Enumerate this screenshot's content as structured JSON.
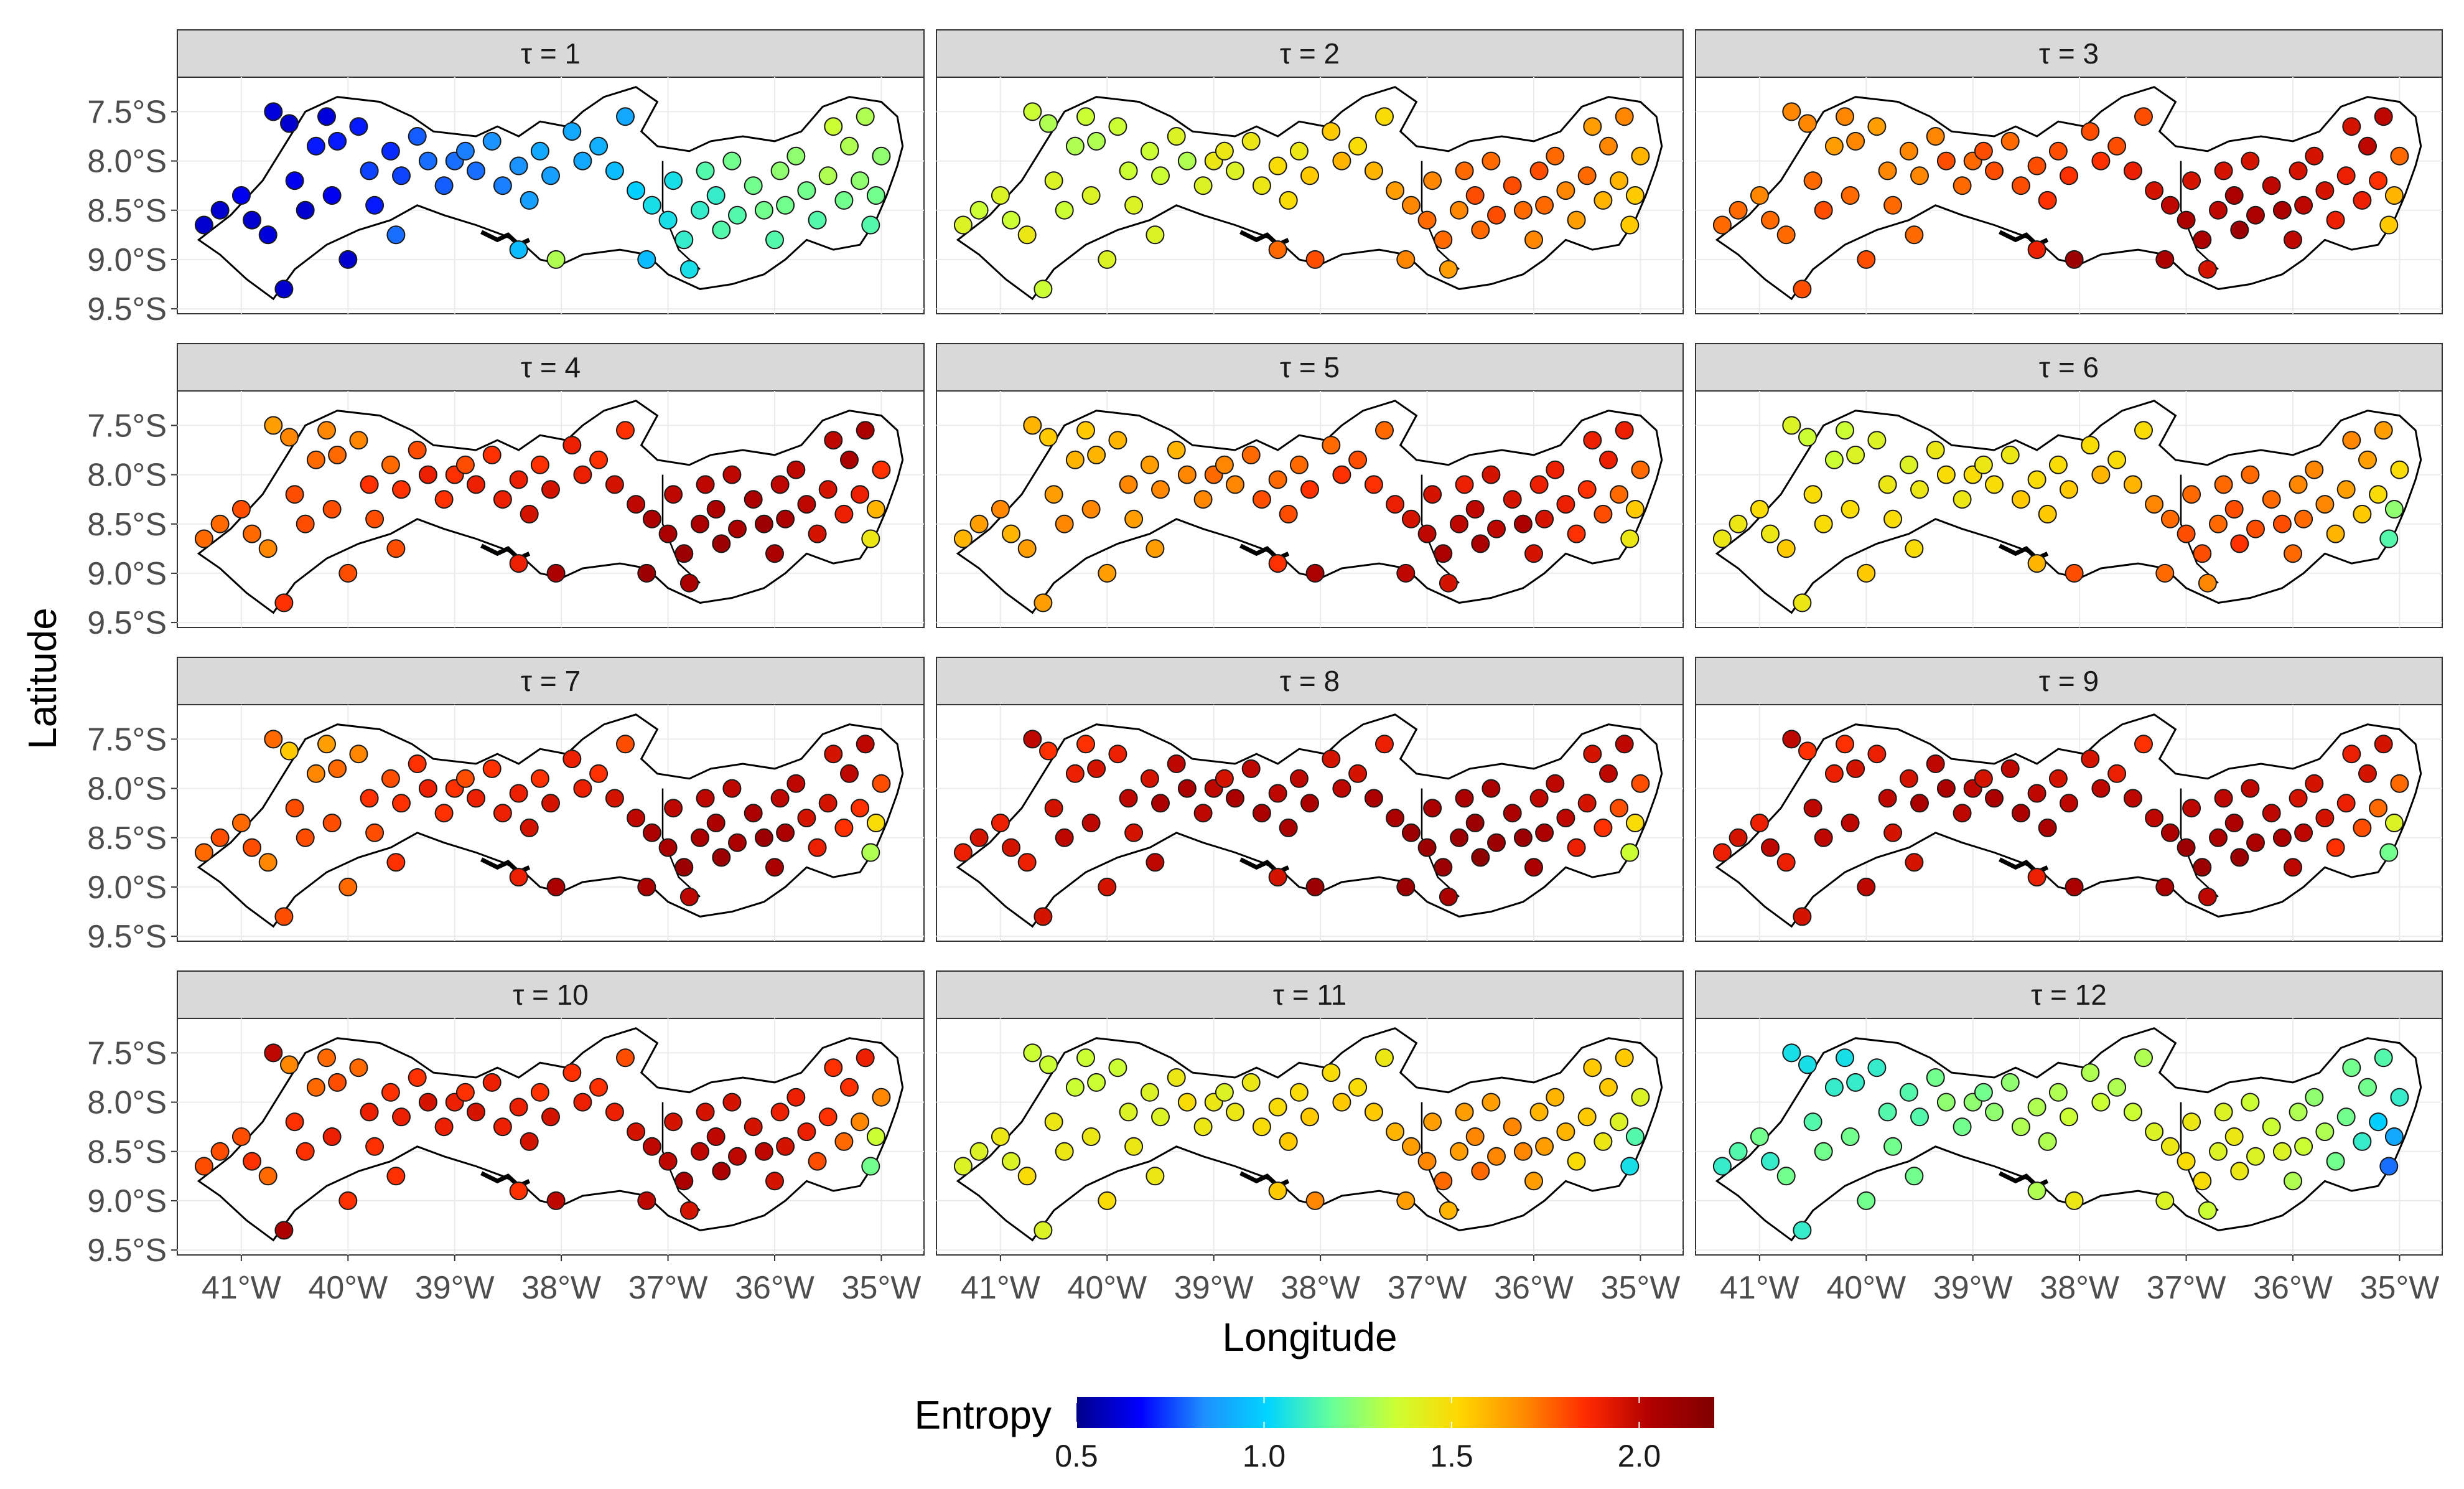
{
  "chart_data": {
    "type": "map",
    "region": "Pernambuco",
    "x_label": "Longitude",
    "y_label": "Latitude",
    "x_ticks": [
      "41°W",
      "40°W",
      "39°W",
      "38°W",
      "37°W",
      "36°W",
      "35°W"
    ],
    "y_ticks": [
      "7.5°S",
      "8.0°S",
      "8.5°S",
      "9.0°S",
      "9.5°S"
    ],
    "x_tick_values": [
      -41,
      -40,
      -39,
      -38,
      -37,
      -36,
      -35
    ],
    "y_tick_values": [
      -7.5,
      -8.0,
      -8.5,
      -9.0,
      -9.5
    ],
    "xlim": [
      -41.6,
      -34.6
    ],
    "ylim": [
      -9.55,
      -7.15
    ],
    "legend": {
      "title": "Entropy",
      "position": "bottom",
      "range": [
        0.5,
        2.2
      ],
      "ticks": [
        "0.5",
        "1.0",
        "1.5",
        "2.0"
      ],
      "tick_values": [
        0.5,
        1.0,
        1.5,
        2.0
      ],
      "colors": [
        "#00008b",
        "#0000ff",
        "#1e90ff",
        "#00d5ff",
        "#66ff99",
        "#ccff33",
        "#ffd700",
        "#ff8c00",
        "#ff2a00",
        "#b00000",
        "#800000"
      ]
    },
    "panel_labels": [
      "τ = 1",
      "τ = 2",
      "τ = 3",
      "τ = 4",
      "τ = 5",
      "τ = 6",
      "τ = 7",
      "τ = 8",
      "τ = 9",
      "τ = 10",
      "τ = 11",
      "τ = 12"
    ],
    "stations": [
      [
        -41.2,
        -8.5
      ],
      [
        -41.0,
        -8.35
      ],
      [
        -40.9,
        -8.6
      ],
      [
        -40.75,
        -8.75
      ],
      [
        -40.7,
        -7.5
      ],
      [
        -40.55,
        -7.62
      ],
      [
        -40.5,
        -8.2
      ],
      [
        -40.4,
        -8.5
      ],
      [
        -40.3,
        -7.85
      ],
      [
        -40.2,
        -7.55
      ],
      [
        -40.1,
        -7.8
      ],
      [
        -40.15,
        -8.35
      ],
      [
        -40.0,
        -9.0
      ],
      [
        -39.9,
        -7.65
      ],
      [
        -39.8,
        -8.1
      ],
      [
        -39.75,
        -8.45
      ],
      [
        -39.6,
        -7.9
      ],
      [
        -39.5,
        -8.15
      ],
      [
        -39.35,
        -7.75
      ],
      [
        -39.25,
        -8.0
      ],
      [
        -39.1,
        -8.25
      ],
      [
        -39.0,
        -8.0
      ],
      [
        -38.9,
        -7.9
      ],
      [
        -38.8,
        -8.1
      ],
      [
        -38.65,
        -7.8
      ],
      [
        -38.55,
        -8.25
      ],
      [
        -38.4,
        -8.05
      ],
      [
        -38.3,
        -8.4
      ],
      [
        -38.2,
        -7.9
      ],
      [
        -38.1,
        -8.15
      ],
      [
        -37.9,
        -7.7
      ],
      [
        -37.8,
        -8.0
      ],
      [
        -37.65,
        -7.85
      ],
      [
        -37.5,
        -8.1
      ],
      [
        -37.4,
        -7.55
      ],
      [
        -37.3,
        -8.3
      ],
      [
        -37.15,
        -8.45
      ],
      [
        -37.0,
        -8.6
      ],
      [
        -36.95,
        -8.2
      ],
      [
        -36.85,
        -8.8
      ],
      [
        -36.7,
        -8.5
      ],
      [
        -36.65,
        -8.1
      ],
      [
        -36.55,
        -8.35
      ],
      [
        -36.5,
        -8.7
      ],
      [
        -36.4,
        -8.0
      ],
      [
        -36.35,
        -8.55
      ],
      [
        -36.2,
        -8.25
      ],
      [
        -36.1,
        -8.5
      ],
      [
        -36.0,
        -8.8
      ],
      [
        -35.95,
        -8.1
      ],
      [
        -35.9,
        -8.45
      ],
      [
        -35.8,
        -7.95
      ],
      [
        -35.7,
        -8.3
      ],
      [
        -35.6,
        -8.6
      ],
      [
        -35.5,
        -8.15
      ],
      [
        -35.45,
        -7.65
      ],
      [
        -35.35,
        -8.4
      ],
      [
        -35.3,
        -7.85
      ],
      [
        -35.2,
        -8.2
      ],
      [
        -35.15,
        -7.55
      ],
      [
        -35.1,
        -8.65
      ],
      [
        -35.05,
        -8.35
      ],
      [
        -35.0,
        -7.95
      ],
      [
        -38.4,
        -8.9
      ],
      [
        -38.05,
        -9.0
      ],
      [
        -37.2,
        -9.0
      ],
      [
        -36.8,
        -9.1
      ],
      [
        -40.6,
        -9.3
      ],
      [
        -41.35,
        -8.65
      ],
      [
        -39.55,
        -8.75
      ]
    ],
    "series": [
      {
        "name": "τ = 1",
        "values": [
          0.6,
          0.65,
          0.6,
          0.62,
          0.62,
          0.6,
          0.65,
          0.6,
          0.7,
          0.62,
          0.7,
          0.65,
          0.6,
          0.7,
          0.75,
          0.7,
          0.72,
          0.75,
          0.78,
          0.8,
          0.78,
          0.8,
          0.82,
          0.8,
          0.85,
          0.82,
          0.85,
          0.88,
          0.9,
          0.88,
          0.9,
          0.9,
          0.92,
          0.95,
          0.9,
          1.0,
          1.05,
          1.05,
          1.05,
          1.1,
          1.1,
          1.15,
          1.1,
          1.15,
          1.2,
          1.15,
          1.2,
          1.2,
          1.15,
          1.25,
          1.2,
          1.25,
          1.2,
          1.15,
          1.3,
          1.35,
          1.2,
          1.3,
          1.25,
          1.3,
          1.15,
          1.2,
          1.25,
          0.95,
          1.3,
          0.95,
          1.05,
          0.6,
          0.6,
          0.8
        ]
      },
      {
        "name": "τ = 2",
        "values": [
          1.35,
          1.4,
          1.35,
          1.45,
          1.35,
          1.3,
          1.4,
          1.35,
          1.3,
          1.35,
          1.3,
          1.4,
          1.4,
          1.35,
          1.35,
          1.4,
          1.35,
          1.35,
          1.4,
          1.3,
          1.4,
          1.45,
          1.45,
          1.4,
          1.45,
          1.45,
          1.5,
          1.5,
          1.45,
          1.55,
          1.55,
          1.6,
          1.5,
          1.6,
          1.5,
          1.65,
          1.7,
          1.75,
          1.7,
          1.75,
          1.7,
          1.75,
          1.8,
          1.75,
          1.75,
          1.8,
          1.8,
          1.75,
          1.7,
          1.8,
          1.75,
          1.75,
          1.7,
          1.65,
          1.75,
          1.65,
          1.6,
          1.7,
          1.6,
          1.7,
          1.55,
          1.55,
          1.6,
          1.75,
          1.8,
          1.7,
          1.65,
          1.35,
          1.4,
          1.4
        ]
      },
      {
        "name": "τ = 3",
        "values": [
          1.75,
          1.7,
          1.75,
          1.75,
          1.7,
          1.7,
          1.75,
          1.8,
          1.65,
          1.7,
          1.7,
          1.75,
          1.8,
          1.65,
          1.7,
          1.75,
          1.7,
          1.7,
          1.7,
          1.8,
          1.75,
          1.75,
          1.8,
          1.8,
          1.75,
          1.8,
          1.8,
          1.85,
          1.8,
          1.85,
          1.8,
          1.85,
          1.8,
          1.9,
          1.8,
          1.95,
          2.0,
          2.05,
          1.95,
          2.05,
          2.0,
          1.95,
          2.05,
          2.1,
          1.95,
          2.05,
          2.0,
          2.05,
          2.0,
          1.95,
          2.0,
          1.95,
          1.95,
          1.9,
          1.9,
          1.95,
          1.9,
          2.0,
          1.85,
          2.0,
          1.55,
          1.6,
          1.75,
          1.9,
          2.1,
          2.05,
          1.95,
          1.8,
          1.75,
          1.75
        ]
      },
      {
        "name": "τ = 4",
        "values": [
          1.75,
          1.8,
          1.75,
          1.7,
          1.65,
          1.7,
          1.8,
          1.8,
          1.75,
          1.7,
          1.75,
          1.8,
          1.8,
          1.7,
          1.85,
          1.8,
          1.75,
          1.85,
          1.8,
          1.9,
          1.85,
          1.85,
          1.8,
          1.9,
          1.85,
          1.9,
          1.9,
          1.95,
          1.85,
          1.95,
          1.9,
          1.9,
          1.85,
          1.95,
          1.85,
          2.0,
          2.05,
          2.05,
          2.0,
          2.1,
          2.05,
          2.0,
          2.05,
          2.1,
          2.0,
          2.05,
          2.05,
          2.1,
          2.05,
          2.0,
          2.05,
          2.0,
          2.0,
          1.95,
          1.95,
          2.0,
          1.9,
          2.05,
          1.9,
          2.05,
          1.45,
          1.6,
          1.85,
          1.9,
          2.05,
          2.1,
          2.05,
          1.85,
          1.75,
          1.8
        ]
      },
      {
        "name": "τ = 5",
        "values": [
          1.65,
          1.7,
          1.6,
          1.65,
          1.6,
          1.55,
          1.65,
          1.7,
          1.6,
          1.55,
          1.6,
          1.7,
          1.65,
          1.6,
          1.7,
          1.65,
          1.65,
          1.7,
          1.6,
          1.7,
          1.7,
          1.75,
          1.7,
          1.7,
          1.75,
          1.8,
          1.75,
          1.8,
          1.75,
          1.85,
          1.75,
          1.85,
          1.8,
          1.85,
          1.75,
          1.9,
          1.95,
          2.0,
          1.95,
          2.05,
          2.0,
          1.9,
          2.0,
          2.05,
          1.95,
          2.0,
          1.95,
          2.05,
          1.95,
          1.9,
          1.95,
          1.9,
          1.9,
          1.85,
          1.85,
          1.9,
          1.8,
          1.9,
          1.75,
          1.9,
          1.45,
          1.55,
          1.75,
          1.85,
          2.05,
          2.0,
          1.95,
          1.65,
          1.6,
          1.65
        ]
      },
      {
        "name": "τ = 6",
        "values": [
          1.45,
          1.5,
          1.45,
          1.55,
          1.4,
          1.35,
          1.5,
          1.5,
          1.35,
          1.35,
          1.4,
          1.5,
          1.55,
          1.4,
          1.45,
          1.5,
          1.4,
          1.45,
          1.45,
          1.5,
          1.45,
          1.5,
          1.45,
          1.5,
          1.45,
          1.55,
          1.5,
          1.55,
          1.5,
          1.55,
          1.5,
          1.6,
          1.5,
          1.6,
          1.5,
          1.7,
          1.75,
          1.8,
          1.75,
          1.8,
          1.75,
          1.75,
          1.8,
          1.85,
          1.75,
          1.8,
          1.75,
          1.8,
          1.75,
          1.7,
          1.75,
          1.7,
          1.7,
          1.6,
          1.65,
          1.7,
          1.55,
          1.65,
          1.5,
          1.65,
          1.15,
          1.25,
          1.5,
          1.6,
          1.8,
          1.75,
          1.7,
          1.45,
          1.45,
          1.5
        ]
      },
      {
        "name": "τ = 7",
        "values": [
          1.8,
          1.75,
          1.8,
          1.7,
          1.75,
          1.55,
          1.8,
          1.8,
          1.7,
          1.65,
          1.75,
          1.8,
          1.75,
          1.7,
          1.85,
          1.8,
          1.8,
          1.85,
          1.85,
          1.9,
          1.85,
          1.85,
          1.8,
          1.9,
          1.85,
          1.9,
          1.9,
          1.95,
          1.85,
          1.95,
          1.9,
          1.9,
          1.85,
          1.95,
          1.8,
          2.0,
          2.05,
          2.05,
          2.0,
          2.1,
          2.05,
          2.0,
          2.05,
          2.1,
          2.0,
          2.05,
          2.05,
          2.1,
          2.05,
          2.0,
          2.05,
          2.0,
          1.95,
          1.9,
          1.95,
          1.95,
          1.85,
          2.0,
          1.85,
          2.0,
          1.3,
          1.5,
          1.8,
          1.9,
          2.05,
          2.05,
          2.0,
          1.8,
          1.75,
          1.85
        ]
      },
      {
        "name": "τ = 8",
        "values": [
          1.95,
          1.9,
          1.95,
          1.9,
          2.0,
          1.85,
          1.95,
          2.0,
          1.9,
          1.85,
          1.95,
          2.0,
          1.95,
          1.9,
          2.0,
          1.95,
          1.95,
          2.05,
          2.0,
          2.05,
          2.0,
          2.0,
          1.95,
          2.05,
          2.0,
          2.05,
          2.0,
          2.05,
          2.0,
          2.05,
          1.95,
          2.0,
          1.95,
          2.05,
          1.9,
          2.05,
          2.1,
          2.1,
          2.05,
          2.1,
          2.1,
          2.05,
          2.1,
          2.15,
          2.05,
          2.1,
          2.05,
          2.1,
          2.05,
          2.0,
          2.05,
          2.0,
          2.0,
          1.9,
          1.95,
          1.95,
          1.85,
          2.0,
          1.8,
          2.0,
          1.35,
          1.5,
          1.8,
          1.95,
          2.1,
          2.1,
          2.05,
          1.95,
          1.9,
          2.0
        ]
      },
      {
        "name": "τ = 9",
        "values": [
          1.95,
          1.9,
          2.0,
          1.9,
          2.0,
          1.85,
          2.0,
          2.0,
          1.9,
          1.85,
          1.95,
          2.0,
          2.0,
          1.9,
          2.0,
          1.95,
          1.95,
          2.05,
          2.0,
          2.05,
          2.0,
          2.0,
          1.95,
          2.05,
          2.0,
          2.05,
          2.0,
          2.05,
          1.95,
          2.0,
          1.95,
          2.0,
          1.9,
          2.0,
          1.85,
          2.0,
          2.05,
          2.1,
          2.0,
          2.1,
          2.05,
          2.0,
          2.05,
          2.1,
          2.0,
          2.05,
          2.0,
          2.05,
          2.0,
          1.95,
          2.0,
          1.95,
          1.95,
          1.85,
          1.9,
          1.9,
          1.8,
          1.95,
          1.75,
          1.95,
          1.2,
          1.4,
          1.75,
          1.9,
          2.05,
          2.05,
          2.0,
          1.95,
          1.9,
          1.95
        ]
      },
      {
        "name": "τ = 10",
        "values": [
          1.8,
          1.8,
          1.85,
          1.75,
          2.0,
          1.7,
          1.85,
          1.85,
          1.75,
          1.75,
          1.8,
          1.9,
          1.85,
          1.75,
          1.9,
          1.85,
          1.85,
          1.9,
          1.85,
          1.95,
          1.9,
          1.9,
          1.85,
          1.95,
          1.9,
          1.9,
          1.9,
          1.95,
          1.85,
          1.95,
          1.85,
          1.9,
          1.85,
          1.9,
          1.8,
          1.95,
          2.0,
          2.0,
          1.95,
          2.05,
          2.0,
          1.95,
          2.0,
          2.05,
          1.95,
          2.0,
          1.95,
          2.0,
          1.95,
          1.9,
          1.95,
          1.9,
          1.9,
          1.8,
          1.85,
          1.85,
          1.75,
          1.85,
          1.7,
          1.9,
          1.2,
          1.35,
          1.7,
          1.85,
          2.0,
          2.0,
          1.95,
          2.05,
          1.8,
          1.85
        ]
      },
      {
        "name": "τ = 11",
        "values": [
          1.4,
          1.45,
          1.4,
          1.5,
          1.35,
          1.35,
          1.45,
          1.45,
          1.35,
          1.35,
          1.35,
          1.45,
          1.5,
          1.35,
          1.4,
          1.45,
          1.4,
          1.4,
          1.45,
          1.5,
          1.45,
          1.45,
          1.4,
          1.45,
          1.45,
          1.5,
          1.5,
          1.55,
          1.5,
          1.55,
          1.5,
          1.55,
          1.5,
          1.55,
          1.45,
          1.6,
          1.65,
          1.7,
          1.65,
          1.75,
          1.65,
          1.65,
          1.7,
          1.75,
          1.65,
          1.7,
          1.7,
          1.7,
          1.65,
          1.6,
          1.65,
          1.6,
          1.6,
          1.5,
          1.55,
          1.55,
          1.45,
          1.55,
          1.4,
          1.55,
          1.05,
          1.15,
          1.4,
          1.55,
          1.7,
          1.65,
          1.6,
          1.4,
          1.4,
          1.45
        ]
      },
      {
        "name": "τ = 12",
        "values": [
          1.15,
          1.2,
          1.1,
          1.2,
          1.05,
          1.05,
          1.15,
          1.2,
          1.1,
          1.05,
          1.1,
          1.2,
          1.2,
          1.1,
          1.15,
          1.2,
          1.15,
          1.15,
          1.2,
          1.25,
          1.2,
          1.25,
          1.2,
          1.25,
          1.25,
          1.3,
          1.3,
          1.3,
          1.3,
          1.35,
          1.3,
          1.35,
          1.3,
          1.35,
          1.3,
          1.4,
          1.45,
          1.5,
          1.45,
          1.5,
          1.4,
          1.4,
          1.45,
          1.45,
          1.35,
          1.4,
          1.35,
          1.4,
          1.3,
          1.3,
          1.35,
          1.25,
          1.3,
          1.2,
          1.2,
          1.2,
          1.1,
          1.2,
          1.0,
          1.15,
          0.8,
          0.9,
          1.1,
          1.3,
          1.45,
          1.4,
          1.35,
          1.1,
          1.1,
          1.2
        ]
      }
    ]
  }
}
